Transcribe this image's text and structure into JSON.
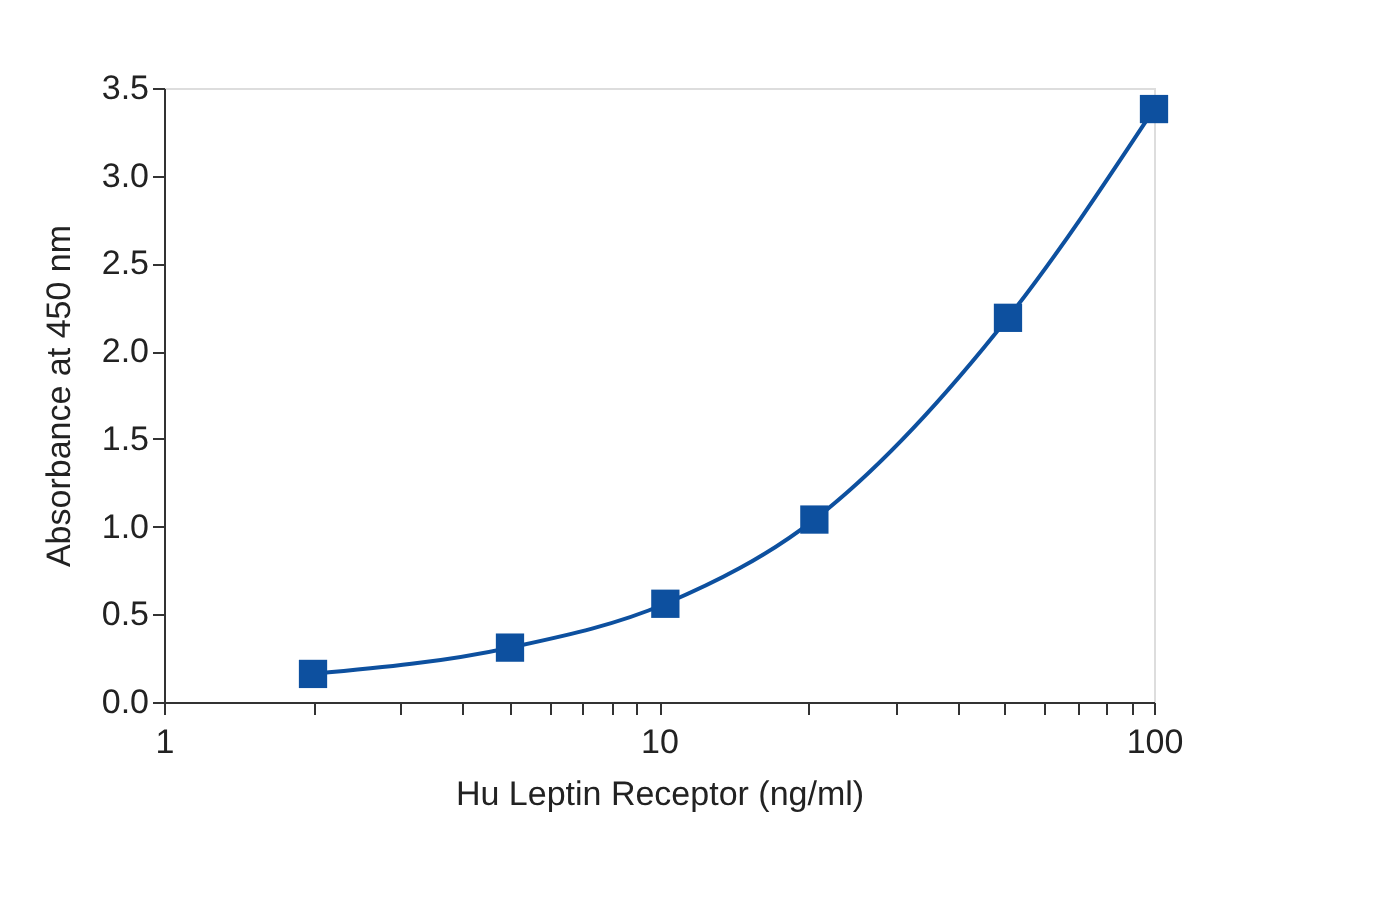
{
  "chart_data": {
    "type": "line",
    "xlabel": "Hu Leptin Receptor (ng/ml)",
    "ylabel": "Absorbance at 450 nm",
    "x": [
      2,
      5,
      10.3,
      20.6,
      50.7,
      100
    ],
    "series": [
      {
        "color": "#0d509f",
        "values": [
          0.16,
          0.31,
          0.56,
          1.04,
          2.19,
          3.38
        ]
      }
    ],
    "log": "x",
    "marker": "square",
    "line_style": "solid",
    "grid": false,
    "xlim": [
      1,
      100
    ],
    "xticks": [
      {
        "value": 1,
        "label": "1"
      },
      {
        "value": 2,
        "label": null
      },
      {
        "value": 3,
        "label": null
      },
      {
        "value": 4,
        "label": null
      },
      {
        "value": 5,
        "label": null
      },
      {
        "value": 6,
        "label": null
      },
      {
        "value": 7,
        "label": null
      },
      {
        "value": 8,
        "label": null
      },
      {
        "value": 9,
        "label": null
      },
      {
        "value": 10,
        "label": "10"
      },
      {
        "value": 20,
        "label": null
      },
      {
        "value": 30,
        "label": null
      },
      {
        "value": 40,
        "label": null
      },
      {
        "value": 50,
        "label": null
      },
      {
        "value": 60,
        "label": null
      },
      {
        "value": 70,
        "label": null
      },
      {
        "value": 80,
        "label": null
      },
      {
        "value": 90,
        "label": null
      },
      {
        "value": 100,
        "label": "100"
      }
    ],
    "ylim": [
      0,
      3.5
    ],
    "yticks": [
      {
        "value": 0,
        "label": "0.0"
      },
      {
        "value": 0.5,
        "label": "0.5"
      },
      {
        "value": 1,
        "label": "1.0"
      },
      {
        "value": 1.5,
        "label": "1.5"
      },
      {
        "value": 2,
        "label": "2.0"
      },
      {
        "value": 2.5,
        "label": "2.5"
      },
      {
        "value": 3,
        "label": "3.0"
      },
      {
        "value": 3.5,
        "label": "3.5"
      }
    ]
  }
}
